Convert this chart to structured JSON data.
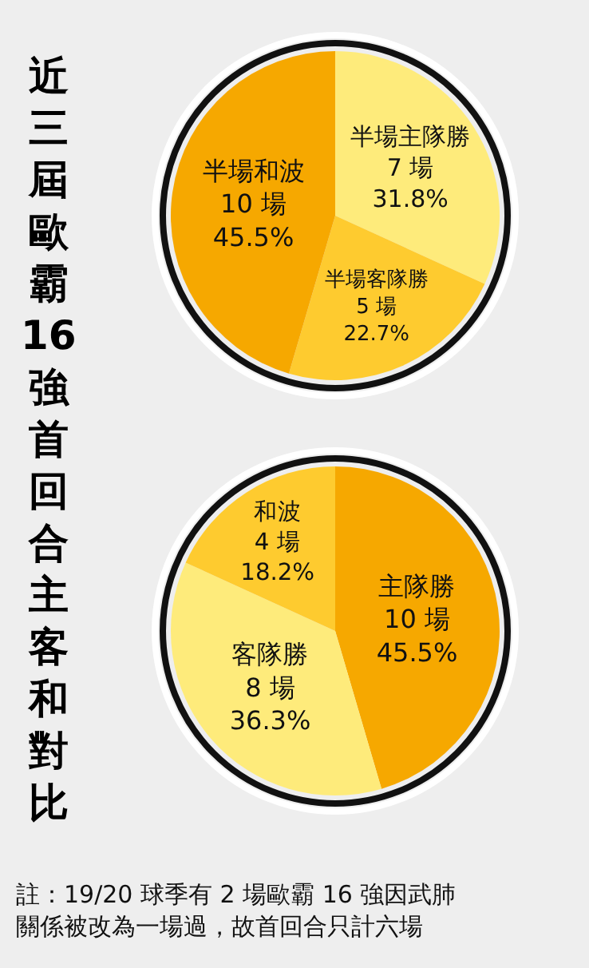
{
  "chart_data": [
    {
      "type": "pie",
      "title": "近三屆歐霸16強首回合主客和對比",
      "categories": [
        "半場主隊勝",
        "半場客隊勝",
        "半場和波"
      ],
      "values": [
        7,
        5,
        10
      ],
      "value_labels": [
        "7 場\n31.8%",
        "5 場\n22.7%",
        "10 場\n45.5%"
      ],
      "colors": [
        "#feeb7b",
        "#fecb2f",
        "#f6a800"
      ]
    },
    {
      "type": "pie",
      "categories": [
        "主隊勝",
        "客隊勝",
        "和波"
      ],
      "values": [
        10,
        8,
        4
      ],
      "value_labels": [
        "10 場\n45.5%",
        "8 場\n36.3%",
        "4 場\n18.2%"
      ],
      "colors": [
        "#f6a800",
        "#feeb7b",
        "#fecb2f"
      ],
      "annotations": [
        "註：19/20 球季有 2 場歐霸 16 強因武肺",
        "關係被改為一場過，故首回合只計六場"
      ]
    }
  ]
}
